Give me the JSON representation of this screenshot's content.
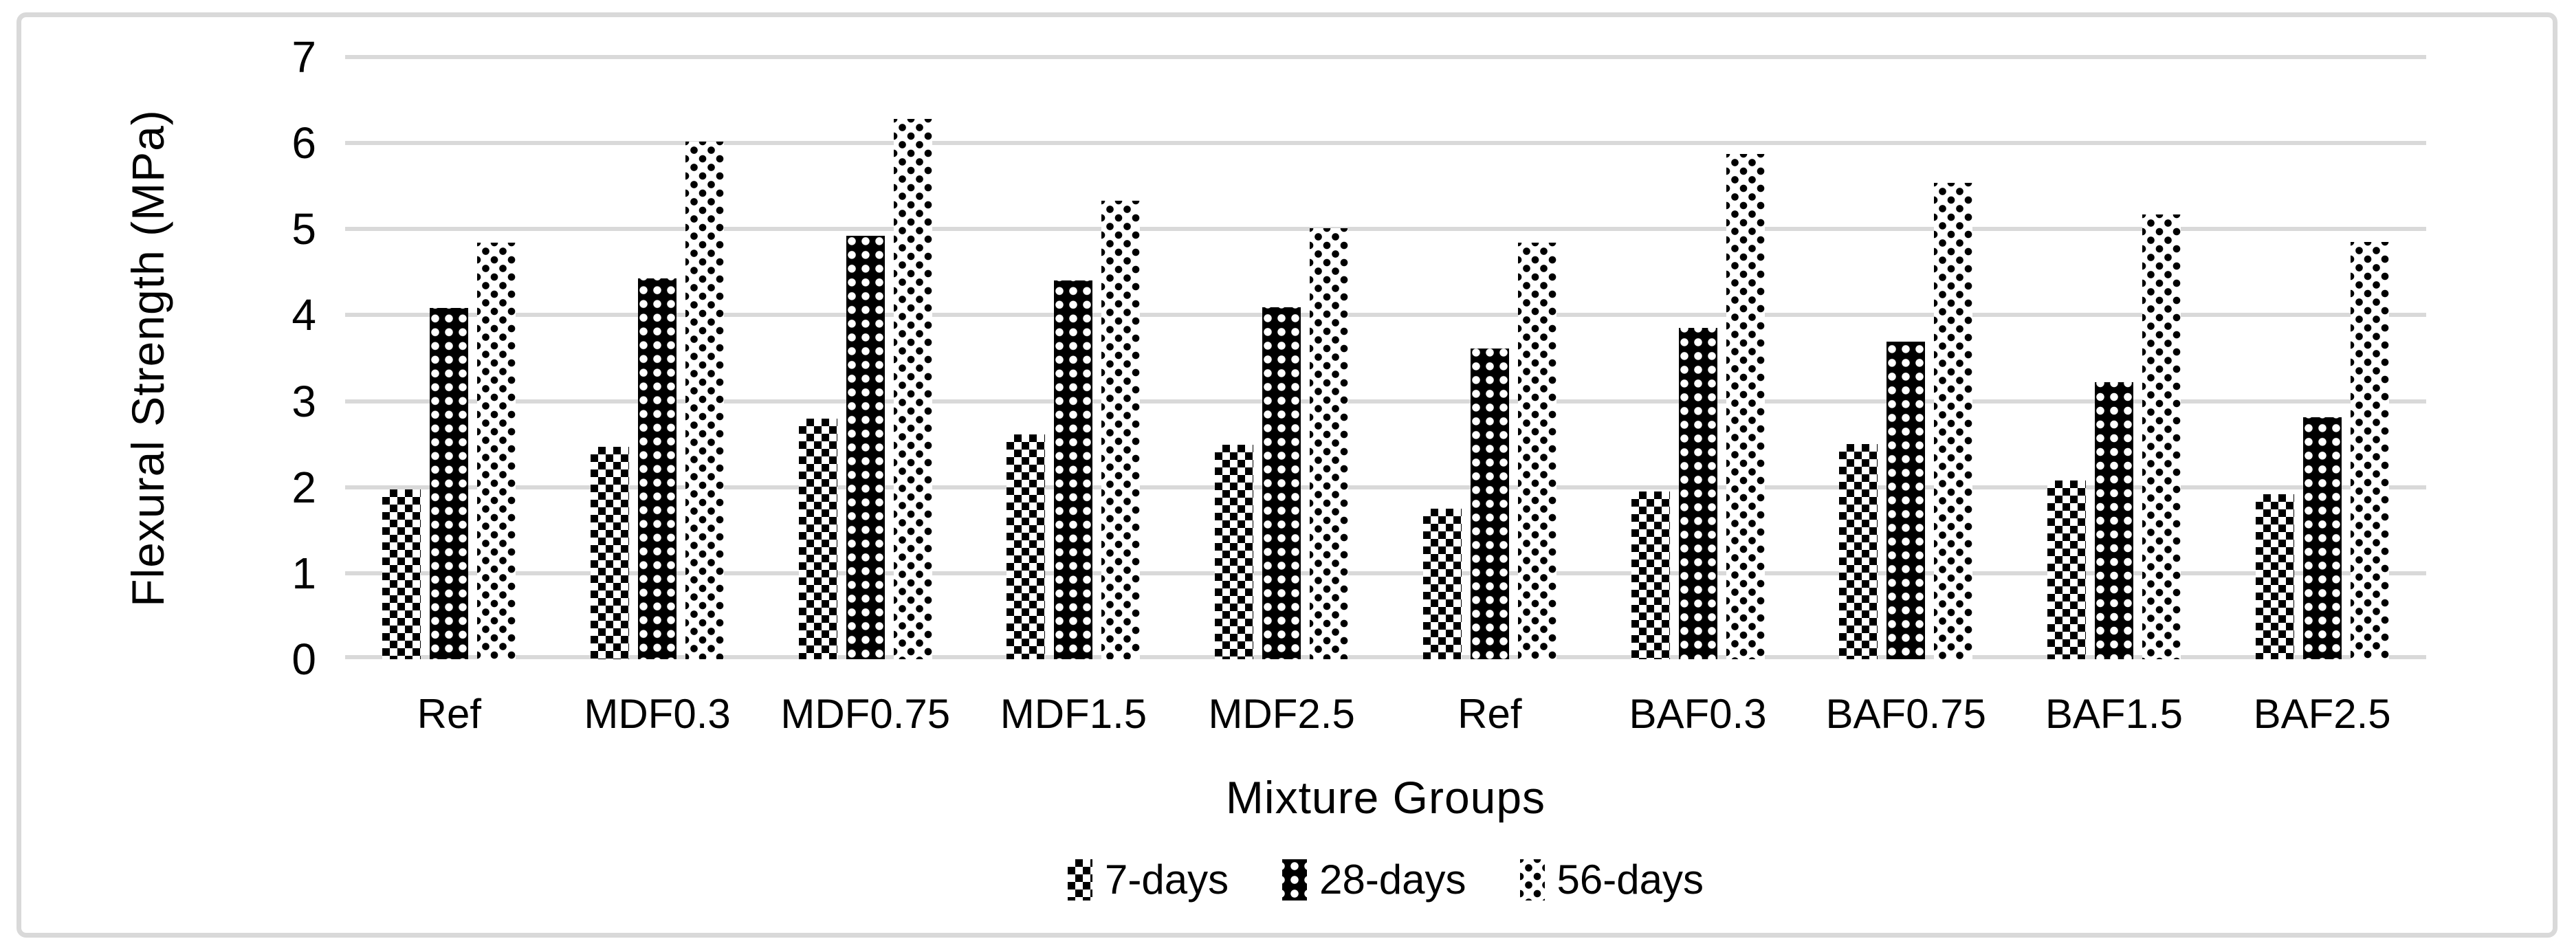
{
  "figure": {
    "background": "#ffffff",
    "border_color": "#d9d9d9",
    "text_color": "#000000",
    "gridline_color": "#d9d9d9"
  },
  "chart_data": {
    "type": "bar",
    "title": "",
    "xlabel": "Mixture Groups",
    "ylabel": "Flexural Strength (MPa)",
    "ylim": [
      0,
      7
    ],
    "yticks": [
      0,
      1,
      2,
      3,
      4,
      5,
      6,
      7
    ],
    "grid": "horizontal",
    "legend_position": "bottom-center",
    "categories": [
      "Ref",
      "MDF0.3",
      "MDF0.75",
      "MDF1.5",
      "MDF2.5",
      "Ref",
      "BAF0.3",
      "BAF0.75",
      "BAF1.5",
      "BAF2.5"
    ],
    "series": [
      {
        "name": "7-days",
        "pattern": "checkerboard",
        "values": [
          1.97,
          2.47,
          2.8,
          2.61,
          2.49,
          1.75,
          1.95,
          2.5,
          2.08,
          1.92
        ]
      },
      {
        "name": "28-days",
        "pattern": "white-dots-on-black",
        "values": [
          4.08,
          4.43,
          4.92,
          4.4,
          4.09,
          3.61,
          3.85,
          3.69,
          3.22,
          2.81
        ]
      },
      {
        "name": "56-days",
        "pattern": "black-dots-on-white",
        "values": [
          4.84,
          6.02,
          6.28,
          5.33,
          5.01,
          4.84,
          5.87,
          5.54,
          5.17,
          4.85
        ]
      }
    ]
  }
}
